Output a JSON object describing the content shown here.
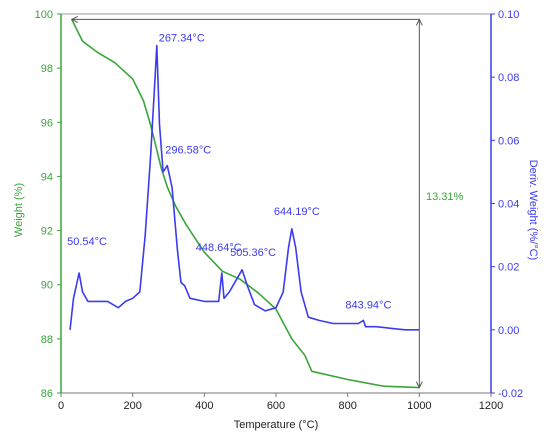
{
  "chart_data": {
    "type": "line",
    "xlabel": "Temperature (°C)",
    "ylabel_left": "Weight (%)",
    "ylabel_right": "Deriv. Weight (%/°C)",
    "xlim": [
      0,
      1200
    ],
    "ylim_left": [
      86,
      100
    ],
    "ylim_right": [
      -0.02,
      0.1
    ],
    "x_ticks": [
      "0",
      "200",
      "400",
      "600",
      "800",
      "1000",
      "1200"
    ],
    "y_left_ticks": [
      "86",
      "88",
      "90",
      "92",
      "94",
      "96",
      "98",
      "100"
    ],
    "y_right_ticks": [
      "-0.02",
      "0.00",
      "0.02",
      "0.04",
      "0.06",
      "0.08",
      "0.10"
    ],
    "weight_loss_label": "13.31%",
    "colors": {
      "weight": "#3aa63a",
      "deriv": "#3b3bf0",
      "axis_left": "#3aa63a",
      "axis_right": "#3b3bf0",
      "marker": "#555555"
    },
    "series": [
      {
        "name": "Weight (%)",
        "axis": "left",
        "x": [
          30,
          60,
          100,
          150,
          200,
          230,
          250,
          267,
          280,
          297,
          320,
          350,
          400,
          450,
          500,
          550,
          600,
          644,
          680,
          700,
          800,
          900,
          1000
        ],
        "y": [
          99.8,
          99.0,
          98.6,
          98.2,
          97.6,
          96.8,
          95.9,
          95.0,
          94.3,
          93.6,
          92.9,
          92.2,
          91.2,
          90.5,
          90.2,
          89.7,
          89.1,
          88.0,
          87.4,
          86.8,
          86.5,
          86.25,
          86.2
        ]
      },
      {
        "name": "Deriv. Weight (%/°C)",
        "axis": "right",
        "x": [
          25,
          35,
          50.54,
          60,
          75,
          100,
          130,
          160,
          180,
          200,
          220,
          235,
          250,
          260,
          267.34,
          275,
          285,
          296.58,
          310,
          325,
          335,
          345,
          360,
          400,
          440,
          448.64,
          455,
          470,
          490,
          505.36,
          520,
          540,
          570,
          600,
          620,
          635,
          644.19,
          655,
          670,
          690,
          720,
          760,
          800,
          830,
          843.94,
          850,
          880,
          920,
          960,
          1000
        ],
        "y": [
          0.0,
          0.01,
          0.018,
          0.012,
          0.009,
          0.009,
          0.009,
          0.007,
          0.009,
          0.01,
          0.012,
          0.03,
          0.055,
          0.075,
          0.09,
          0.065,
          0.05,
          0.052,
          0.045,
          0.025,
          0.015,
          0.014,
          0.01,
          0.009,
          0.009,
          0.018,
          0.01,
          0.012,
          0.016,
          0.019,
          0.014,
          0.008,
          0.006,
          0.007,
          0.012,
          0.026,
          0.032,
          0.026,
          0.012,
          0.004,
          0.003,
          0.002,
          0.002,
          0.002,
          0.003,
          0.001,
          0.001,
          0.0005,
          0.0,
          0.0
        ]
      }
    ],
    "annotations": [
      {
        "text": "267.34°C",
        "x": 267.34,
        "y": 0.09,
        "axis": "right"
      },
      {
        "text": "296.58°C",
        "x": 296.58,
        "y": 0.052,
        "axis": "right"
      },
      {
        "text": "50.54°C",
        "x": 50.54,
        "y": 0.018,
        "axis": "right"
      },
      {
        "text": "448.64°C",
        "x": 448.64,
        "y": 0.018,
        "axis": "right"
      },
      {
        "text": "505.36°C",
        "x": 505.36,
        "y": 0.019,
        "axis": "right"
      },
      {
        "text": "644.19°C",
        "x": 644.19,
        "y": 0.032,
        "axis": "right"
      },
      {
        "text": "843.94°C",
        "x": 843.94,
        "y": 0.003,
        "axis": "right"
      }
    ]
  }
}
